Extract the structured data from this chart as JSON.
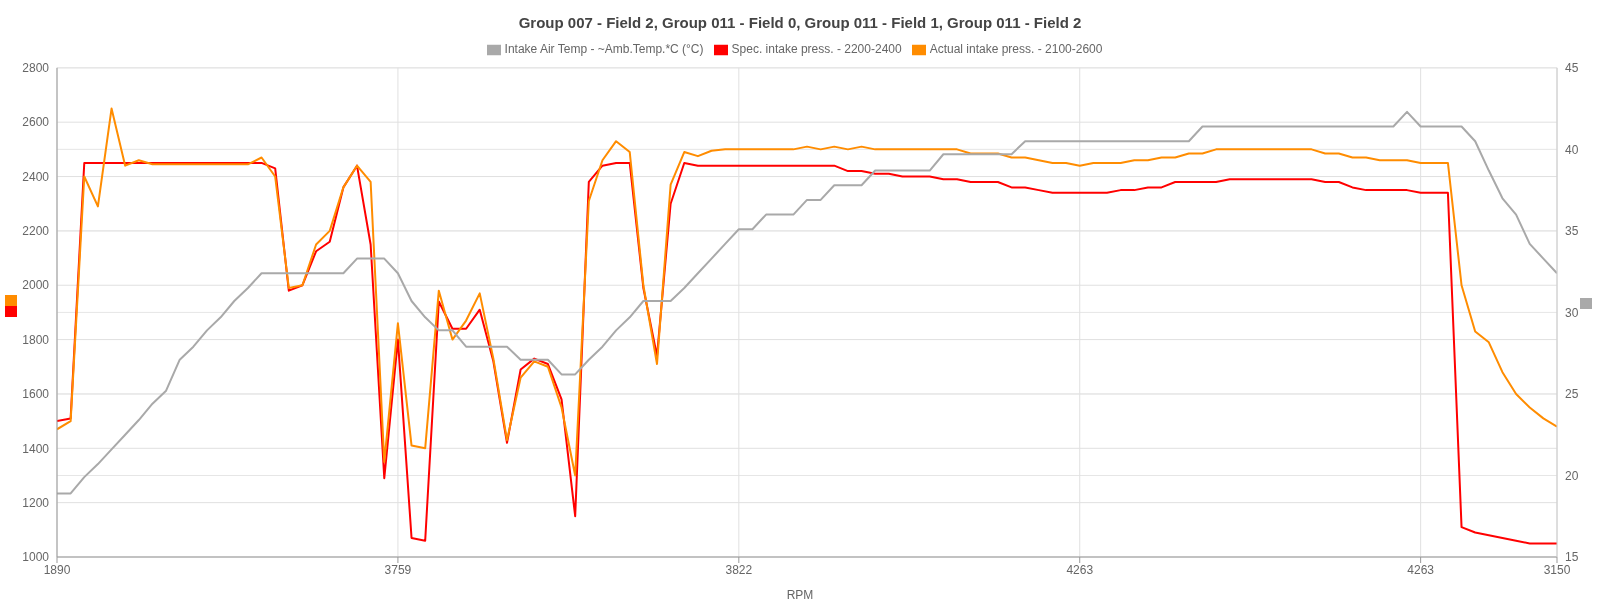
{
  "chart_data": {
    "type": "line",
    "title": "Group 007 - Field 2, Group 011 - Field 0, Group 011 - Field 1, Group 011 - Field 2",
    "xlabel": "RPM",
    "categories": [
      "1890",
      null,
      null,
      null,
      null,
      null,
      null,
      null,
      null,
      null,
      null,
      null,
      null,
      null,
      null,
      null,
      null,
      null,
      null,
      null,
      null,
      null,
      null,
      null,
      null,
      "3759",
      null,
      null,
      null,
      null,
      null,
      null,
      null,
      null,
      null,
      null,
      null,
      null,
      null,
      null,
      null,
      null,
      null,
      null,
      null,
      null,
      null,
      null,
      null,
      null,
      "3822",
      null,
      null,
      null,
      null,
      null,
      null,
      null,
      null,
      null,
      null,
      null,
      null,
      null,
      null,
      null,
      null,
      null,
      null,
      null,
      null,
      null,
      null,
      null,
      null,
      "4263",
      null,
      null,
      null,
      null,
      null,
      null,
      null,
      null,
      null,
      null,
      null,
      null,
      null,
      null,
      null,
      null,
      null,
      null,
      null,
      null,
      null,
      null,
      null,
      null,
      "4263",
      null,
      null,
      null,
      null,
      null,
      null,
      null,
      null,
      null,
      "3150"
    ],
    "series": [
      {
        "name": "Intake Air Temp - ~Amb.Temp.*C (°C)",
        "color": "#a9a9a9",
        "axis": "y2",
        "values": [
          18.9,
          18.9,
          19.9,
          20.7,
          21.6,
          22.5,
          23.4,
          24.4,
          25.2,
          27.1,
          27.9,
          28.9,
          29.7,
          30.7,
          31.5,
          32.4,
          32.4,
          32.4,
          32.4,
          32.4,
          32.4,
          32.4,
          33.3,
          33.3,
          33.3,
          32.4,
          30.7,
          29.7,
          28.9,
          28.9,
          27.9,
          27.9,
          27.9,
          27.9,
          27.1,
          27.1,
          27.1,
          26.2,
          26.2,
          27.1,
          27.9,
          28.9,
          29.7,
          30.7,
          30.7,
          30.7,
          31.5,
          32.4,
          33.3,
          34.2,
          35.1,
          35.1,
          36.0,
          36.0,
          36.0,
          36.9,
          36.9,
          37.8,
          37.8,
          37.8,
          38.7,
          38.7,
          38.7,
          38.7,
          38.7,
          39.7,
          39.7,
          39.7,
          39.7,
          39.7,
          39.7,
          40.5,
          40.5,
          40.5,
          40.5,
          40.5,
          40.5,
          40.5,
          40.5,
          40.5,
          40.5,
          40.5,
          40.5,
          40.5,
          41.4,
          41.4,
          41.4,
          41.4,
          41.4,
          41.4,
          41.4,
          41.4,
          41.4,
          41.4,
          41.4,
          41.4,
          41.4,
          41.4,
          41.4,
          42.3,
          41.4,
          41.4,
          41.4,
          41.4,
          40.5,
          38.7,
          37.0,
          36.0,
          34.2,
          33.3,
          32.4
        ]
      },
      {
        "name": "Spec. intake press. - 2200-2400",
        "color": "#ff0000",
        "values": [
          1500,
          1510,
          2450,
          2450,
          2450,
          2450,
          2450,
          2450,
          2450,
          2450,
          2450,
          2450,
          2450,
          2450,
          2450,
          2450,
          2430,
          1980,
          2000,
          2125,
          2160,
          2360,
          2440,
          2150,
          1290,
          1800,
          1070,
          1060,
          1940,
          1840,
          1840,
          1910,
          1720,
          1420,
          1690,
          1730,
          1710,
          1580,
          1150,
          2380,
          2440,
          2450,
          2450,
          1990,
          1740,
          2300,
          2450,
          2440,
          2440,
          2440,
          2440,
          2440,
          2440,
          2440,
          2440,
          2440,
          2440,
          2440,
          2420,
          2420,
          2410,
          2410,
          2400,
          2400,
          2400,
          2390,
          2390,
          2380,
          2380,
          2380,
          2360,
          2360,
          2350,
          2340,
          2340,
          2340,
          2340,
          2340,
          2350,
          2350,
          2360,
          2360,
          2380,
          2380,
          2380,
          2380,
          2390,
          2390,
          2390,
          2390,
          2390,
          2390,
          2390,
          2380,
          2380,
          2360,
          2350,
          2350,
          2350,
          2350,
          2340,
          2340,
          2340,
          1110,
          1090,
          1080,
          1070,
          1060,
          1050,
          1050,
          1050
        ]
      },
      {
        "name": "Actual intake press. - 2100-2600",
        "color": "#ff8c00",
        "values": [
          1470,
          1500,
          2400,
          2290,
          2650,
          2440,
          2460,
          2445,
          2445,
          2445,
          2445,
          2445,
          2445,
          2445,
          2445,
          2470,
          2400,
          1990,
          2000,
          2150,
          2200,
          2360,
          2440,
          2380,
          1350,
          1860,
          1410,
          1400,
          1980,
          1800,
          1870,
          1970,
          1730,
          1430,
          1660,
          1720,
          1700,
          1550,
          1300,
          2310,
          2460,
          2530,
          2490,
          2000,
          1710,
          2370,
          2490,
          2475,
          2495,
          2500,
          2500,
          2500,
          2500,
          2500,
          2500,
          2510,
          2500,
          2510,
          2500,
          2510,
          2500,
          2500,
          2500,
          2500,
          2500,
          2500,
          2500,
          2485,
          2485,
          2485,
          2470,
          2470,
          2460,
          2450,
          2450,
          2440,
          2450,
          2450,
          2450,
          2460,
          2460,
          2470,
          2470,
          2485,
          2485,
          2500,
          2500,
          2500,
          2500,
          2500,
          2500,
          2500,
          2500,
          2485,
          2485,
          2470,
          2470,
          2460,
          2460,
          2460,
          2450,
          2450,
          2450,
          2000,
          1830,
          1790,
          1680,
          1600,
          1550,
          1510,
          1480
        ]
      }
    ],
    "ylim": [
      1000,
      2800
    ],
    "yticks": [
      1000,
      1200,
      1400,
      1600,
      1800,
      2000,
      2200,
      2400,
      2600,
      2800
    ],
    "y2lim": [
      15,
      45
    ],
    "y2ticks": [
      15,
      20,
      25,
      30,
      35,
      40,
      45
    ],
    "grid": true,
    "legend": "top",
    "marker": "none",
    "line_style": "solid"
  }
}
